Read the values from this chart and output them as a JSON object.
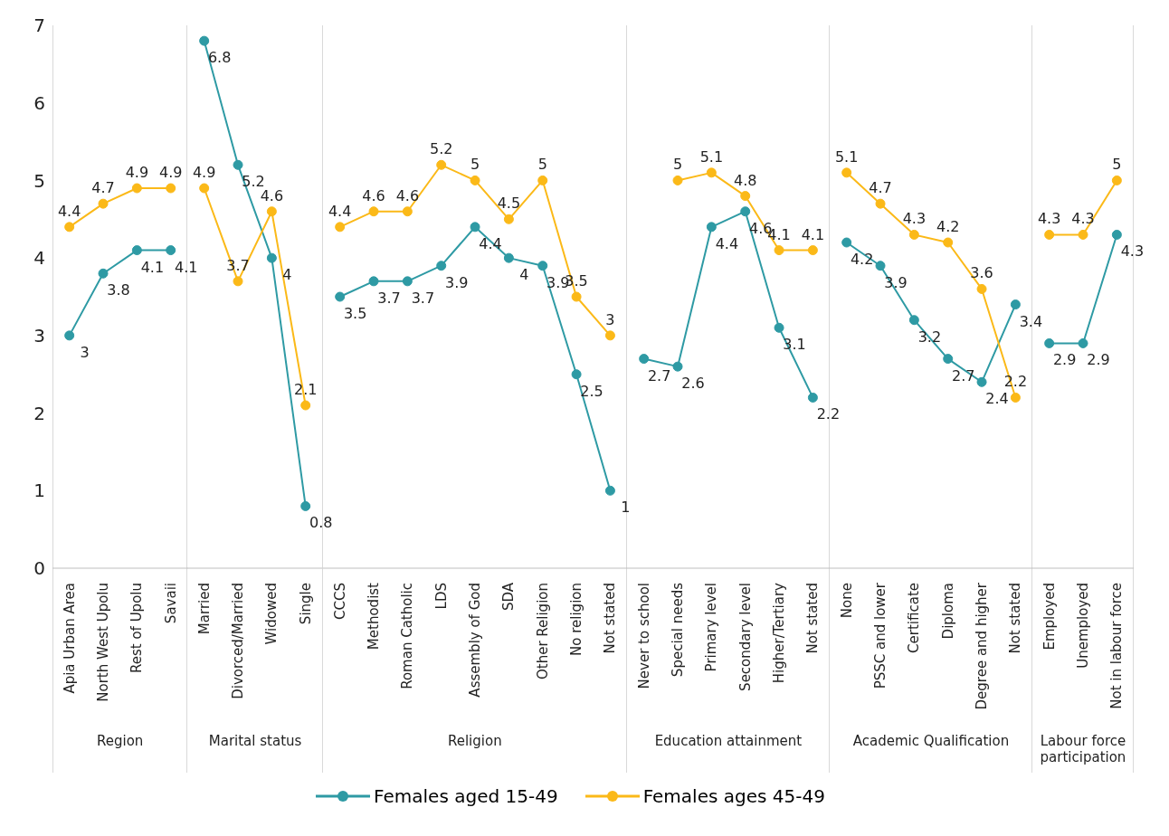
{
  "chart_data": [
    {
      "type": "line",
      "xlabel": "Region",
      "categories": [
        "Apia Urban Area",
        "North West Upolu",
        "Rest of Upolu",
        "Savaii"
      ],
      "series": [
        {
          "name": "Females aged 15-49",
          "color": "#2e9aa4",
          "values": [
            3,
            3.8,
            4.1,
            4.1
          ]
        },
        {
          "name": "Females ages 45-49",
          "color": "#fbb918",
          "values": [
            4.4,
            4.7,
            4.9,
            4.9
          ]
        }
      ],
      "ylim": [
        0,
        7
      ],
      "yticks": [
        0,
        1,
        2,
        3,
        4,
        5,
        6,
        7
      ],
      "legend": "bottom",
      "marker": "circle",
      "line_style": "solid",
      "data_labels": true
    },
    {
      "type": "line",
      "xlabel": "Marital status",
      "categories": [
        "Married",
        "Divorced/Married",
        "Widowed",
        "Single"
      ],
      "series": [
        {
          "color": "#2e9aa4",
          "values": [
            6.8,
            5.2,
            4,
            0.8
          ]
        },
        {
          "color": "#fbb918",
          "values": [
            4.9,
            3.7,
            4.6,
            2.1
          ]
        }
      ],
      "ylim": [
        0,
        7
      ],
      "yticks": [
        0,
        1,
        2,
        3,
        4,
        5,
        6,
        7
      ],
      "tick_labels": "x",
      "marker": "circle",
      "line_style": "solid",
      "data_labels": true
    },
    {
      "type": "line",
      "xlabel": "Religion",
      "categories": [
        "CCCS",
        "Methodist",
        "Roman Catholic",
        "LDS",
        "Assembly of God",
        "SDA",
        "Other Religion",
        "No religion",
        "Not stated"
      ],
      "series": [
        {
          "color": "#2e9aa4",
          "values": [
            3.5,
            3.7,
            3.7,
            3.9,
            4.4,
            4,
            3.9,
            2.5,
            1
          ]
        },
        {
          "color": "#fbb918",
          "values": [
            4.4,
            4.6,
            4.6,
            5.2,
            5,
            4.5,
            5,
            3.5,
            3
          ]
        }
      ],
      "ylim": [
        0,
        7
      ],
      "yticks": [
        0,
        1,
        2,
        3,
        4,
        5,
        6,
        7
      ],
      "tick_labels": "x",
      "marker": "circle",
      "line_style": "solid",
      "data_labels": true
    },
    {
      "type": "line",
      "xlabel": "Education attainment",
      "categories": [
        "Never to school",
        "Special needs",
        "Primary level",
        "Secondary level",
        "Higher/Tertiary",
        "Not stated"
      ],
      "series": [
        {
          "color": "#2e9aa4",
          "values": [
            2.7,
            2.6,
            4.4,
            4.6,
            3.1,
            2.2
          ]
        },
        {
          "color": "#fbb918",
          "values": [
            null,
            5,
            5.1,
            4.8,
            4.1,
            4.1
          ]
        }
      ],
      "ylim": [
        0,
        7
      ],
      "yticks": [
        0,
        1,
        2,
        3,
        4,
        5,
        6,
        7
      ],
      "tick_labels": "x",
      "marker": "circle",
      "line_style": "solid",
      "data_labels": true
    },
    {
      "type": "line",
      "xlabel": "Academic Qualification",
      "categories": [
        "None",
        "PSSC and lower",
        "Certificate",
        "Diploma",
        "Degree and higher",
        "Not stated"
      ],
      "series": [
        {
          "color": "#2e9aa4",
          "values": [
            4.2,
            3.9,
            3.2,
            2.7,
            2.4,
            3.4
          ]
        },
        {
          "color": "#fbb918",
          "values": [
            5.1,
            4.7,
            4.3,
            4.2,
            3.6,
            2.2
          ]
        }
      ],
      "ylim": [
        0,
        7
      ],
      "yticks": [
        0,
        1,
        2,
        3,
        4,
        5,
        6,
        7
      ],
      "tick_labels": "x",
      "marker": "circle",
      "line_style": "solid",
      "data_labels": true
    },
    {
      "type": "line",
      "xlabel": "Labour force participation",
      "categories": [
        "Employed",
        "Unemployed",
        "Not in labour force"
      ],
      "series": [
        {
          "color": "#2e9aa4",
          "values": [
            2.9,
            2.9,
            4.3
          ]
        },
        {
          "color": "#fbb918",
          "values": [
            4.3,
            4.3,
            5
          ]
        }
      ],
      "ylim": [
        0,
        7
      ],
      "yticks": [
        0,
        1,
        2,
        3,
        4,
        5,
        6,
        7
      ],
      "tick_labels": "x",
      "marker": "circle",
      "line_style": "solid",
      "data_labels": true
    }
  ]
}
